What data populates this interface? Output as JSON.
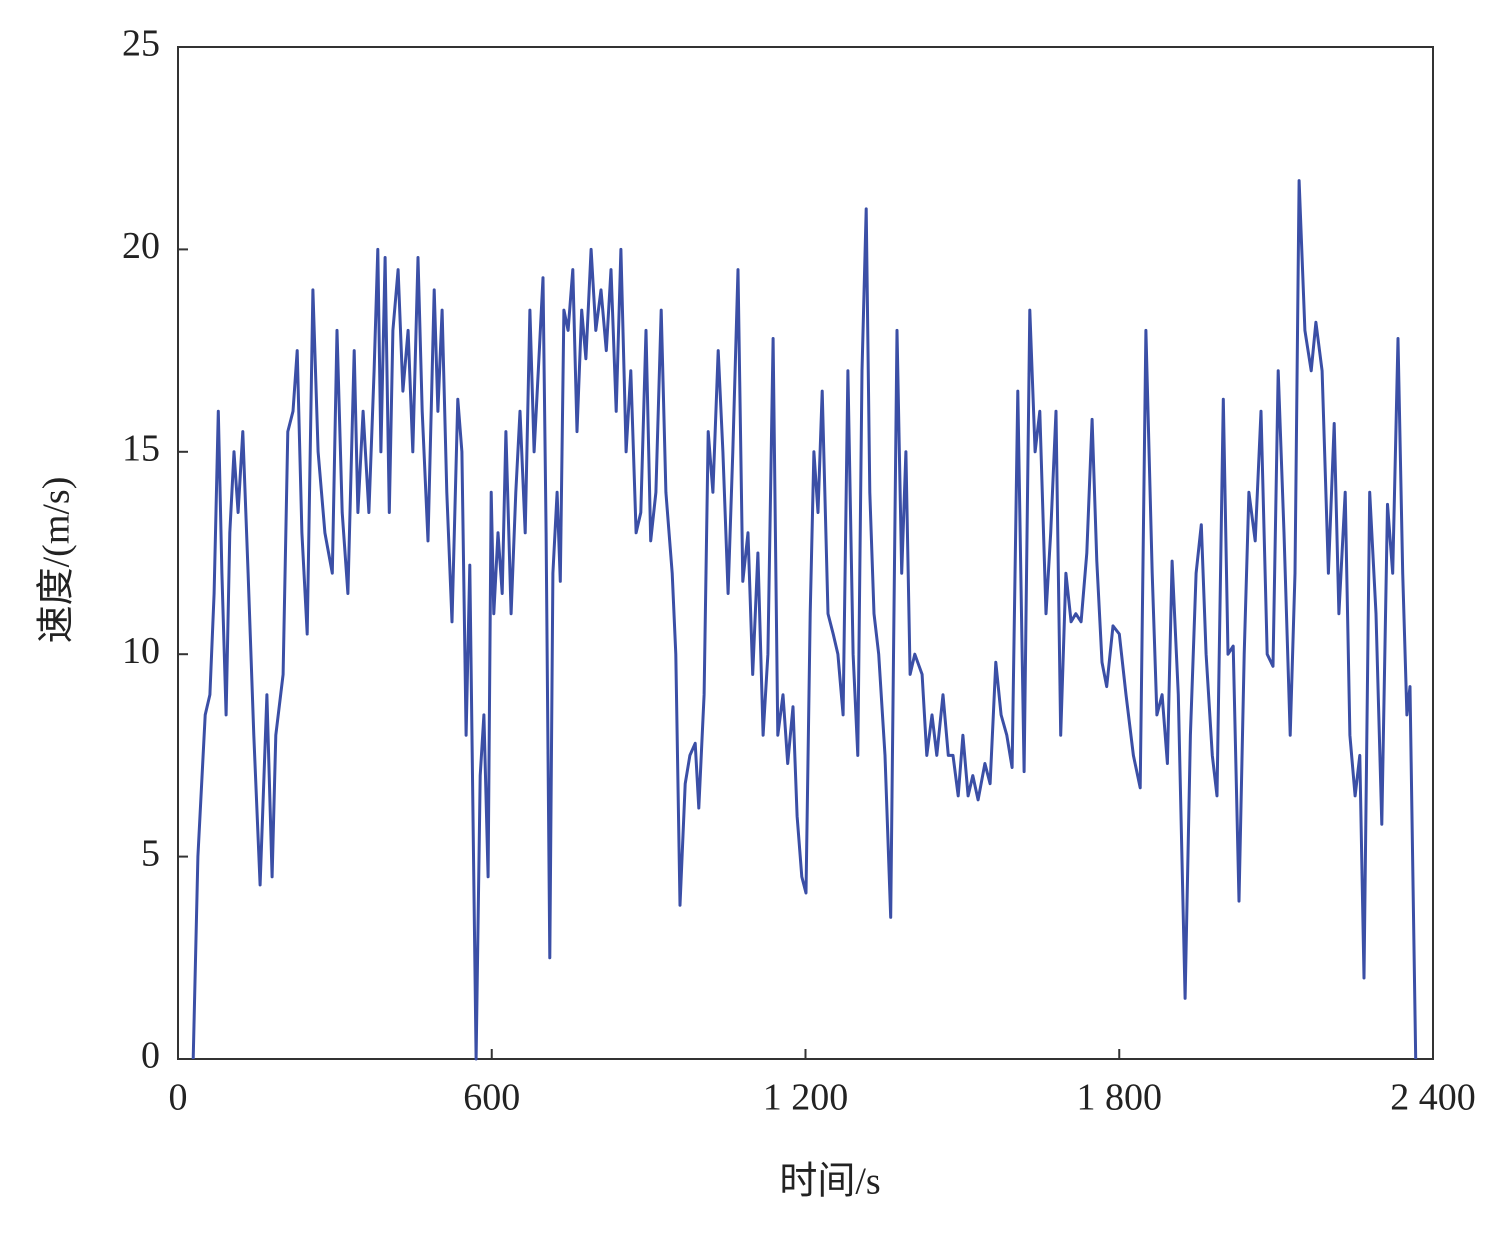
{
  "chart_data": {
    "type": "line",
    "xlabel": "时间/s",
    "ylabel": "速度/(m/s)",
    "xlim": [
      0,
      2400
    ],
    "ylim": [
      0,
      25
    ],
    "xticks": [
      0,
      600,
      {
        "value": 1200,
        "label": "1 200"
      },
      {
        "value": 1800,
        "label": "1 800"
      },
      {
        "value": 2400,
        "label": "2 400"
      }
    ],
    "yticks": [
      0,
      5,
      10,
      15,
      20,
      25
    ],
    "series": [
      {
        "name": "速度",
        "color": "#3b4fa6",
        "x": [
          29,
          38,
          52,
          61,
          69,
          77,
          84,
          92,
          99,
          107,
          115,
          124,
          134,
          145,
          157,
          170,
          180,
          187,
          201,
          210,
          220,
          228,
          237,
          247,
          258,
          268,
          281,
          295,
          304,
          314,
          325,
          337,
          344,
          354,
          365,
          375,
          382,
          388,
          396,
          404,
          411,
          421,
          430,
          440,
          449,
          459,
          467,
          478,
          490,
          497,
          505,
          514,
          524,
          535,
          543,
          551,
          558,
          570,
          578,
          585,
          593,
          599,
          604,
          612,
          620,
          627,
          637,
          646,
          654,
          664,
          673,
          681,
          689,
          698,
          704,
          711,
          717,
          725,
          731,
          738,
          746,
          755,
          763,
          772,
          780,
          790,
          799,
          809,
          819,
          828,
          838,
          847,
          857,
          866,
          876,
          885,
          895,
          904,
          914,
          924,
          933,
          945,
          952,
          960,
          970,
          979,
          989,
          996,
          1006,
          1014,
          1023,
          1033,
          1042,
          1052,
          1061,
          1071,
          1080,
          1090,
          1099,
          1109,
          1119,
          1128,
          1138,
          1147,
          1157,
          1166,
          1176,
          1184,
          1193,
          1201,
          1209,
          1216,
          1224,
          1232,
          1243,
          1253,
          1262,
          1272,
          1281,
          1291,
          1300,
          1308,
          1316,
          1323,
          1331,
          1340,
          1352,
          1363,
          1375,
          1384,
          1392,
          1400,
          1409,
          1423,
          1432,
          1442,
          1451,
          1463,
          1473,
          1482,
          1492,
          1501,
          1511,
          1520,
          1530,
          1543,
          1553,
          1564,
          1574,
          1585,
          1595,
          1606,
          1618,
          1629,
          1639,
          1648,
          1660,
          1669,
          1679,
          1688,
          1698,
          1708,
          1717,
          1727,
          1738,
          1748,
          1757,
          1767,
          1776,
          1788,
          1800,
          1813,
          1827,
          1840,
          1851,
          1863,
          1872,
          1882,
          1892,
          1901,
          1913,
          1926,
          1936,
          1947,
          1957,
          1966,
          1978,
          1987,
          1999,
          2008,
          2018,
          2029,
          2039,
          2048,
          2060,
          2071,
          2083,
          2094,
          2104,
          2115,
          2127,
          2136,
          2144,
          2155,
          2167,
          2176,
          2188,
          2200,
          2211,
          2220,
          2232,
          2241,
          2251,
          2260,
          2268,
          2279,
          2291,
          2302,
          2313,
          2323,
          2333,
          2342,
          2350,
          2356,
          2367
        ],
        "values": [
          0,
          5,
          8.5,
          9,
          11.5,
          16,
          12,
          8.5,
          13,
          15,
          13.5,
          15.5,
          12,
          8,
          4.3,
          9,
          4.5,
          8,
          9.5,
          15.5,
          16,
          17.5,
          13,
          10.5,
          19,
          15,
          13,
          12,
          18,
          13.5,
          11.5,
          17.5,
          13.5,
          16,
          13.5,
          17,
          20,
          15,
          19.8,
          13.5,
          18,
          19.5,
          16.5,
          18,
          15,
          19.8,
          16,
          12.8,
          19,
          16,
          18.5,
          14,
          10.8,
          16.3,
          15,
          8,
          12.2,
          0,
          7,
          8.5,
          4.5,
          14,
          11,
          13,
          11.5,
          15.5,
          11,
          14,
          16,
          13,
          18.5,
          15,
          17,
          19.3,
          13,
          2.5,
          12,
          14,
          11.8,
          18.5,
          18,
          19.5,
          15.5,
          18.5,
          17.3,
          20,
          18,
          19,
          17.5,
          19.5,
          16,
          20,
          15,
          17,
          13,
          13.5,
          18,
          12.8,
          14,
          18.5,
          14,
          12,
          10,
          3.8,
          6.8,
          7.5,
          7.8,
          6.2,
          9,
          15.5,
          14,
          17.5,
          15,
          11.5,
          15,
          19.5,
          11.8,
          13,
          9.5,
          12.5,
          8,
          10,
          17.8,
          8,
          9,
          7.3,
          8.7,
          6,
          4.5,
          4.1,
          11,
          15,
          13.5,
          16.5,
          11,
          10.5,
          10,
          8.5,
          17,
          10,
          7.5,
          17,
          21,
          14,
          11,
          10,
          7.5,
          3.5,
          18,
          12,
          15,
          9.5,
          10,
          9.5,
          7.5,
          8.5,
          7.5,
          9,
          7.5,
          7.5,
          6.5,
          8,
          6.5,
          7,
          6.4,
          7.3,
          6.8,
          9.8,
          8.5,
          8,
          7.2,
          16.5,
          7.1,
          18.5,
          15,
          16,
          11,
          13,
          16,
          8,
          12,
          10.8,
          11,
          10.8,
          12.5,
          15.8,
          12.3,
          9.8,
          9.2,
          10.7,
          10.5,
          9,
          7.5,
          6.7,
          18,
          12,
          8.5,
          9,
          7.3,
          12.3,
          9,
          1.5,
          8,
          12,
          13.2,
          10,
          7.5,
          6.5,
          16.3,
          10,
          10.2,
          3.9,
          10,
          14,
          12.8,
          16,
          10,
          9.7,
          17,
          13,
          8,
          12,
          21.7,
          18,
          17,
          18.2,
          17,
          12,
          15.7,
          11,
          14,
          8,
          6.5,
          7.5,
          2,
          14,
          11,
          5.8,
          13.7,
          12,
          17.8,
          12,
          8.5,
          9.2,
          0
        ]
      }
    ]
  }
}
